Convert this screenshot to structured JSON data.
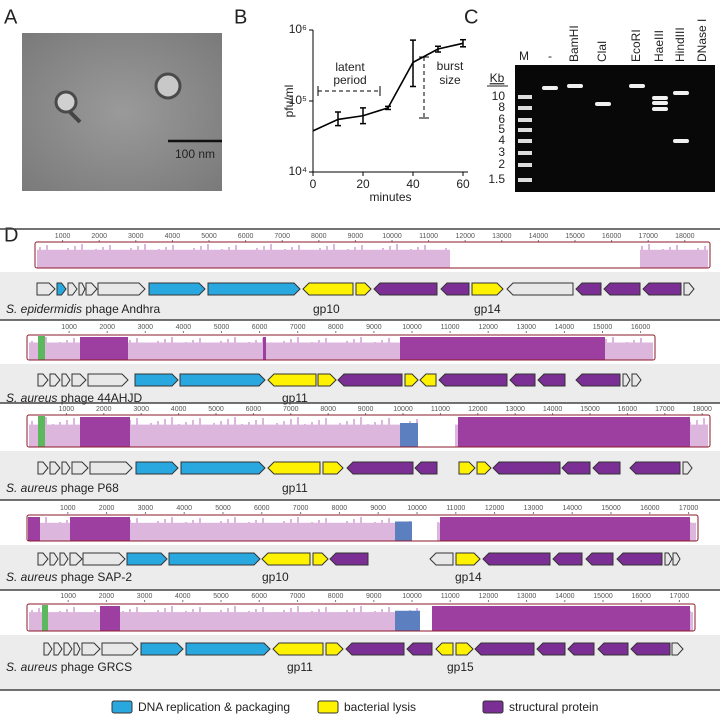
{
  "panel_labels": [
    "A",
    "B",
    "C",
    "D"
  ],
  "panel_a": {
    "scale_bar": "100 nm"
  },
  "chart_data": {
    "type": "line",
    "color": "#000000",
    "x": [
      0,
      10,
      20,
      30,
      40,
      50,
      60
    ],
    "values": [
      38000,
      55000,
      62000,
      80000,
      350000,
      540000,
      650000
    ],
    "lower": [
      null,
      45000,
      48000,
      76000,
      160000,
      490000,
      580000
    ],
    "upper": [
      null,
      70000,
      80000,
      84000,
      720000,
      590000,
      730000
    ],
    "xlim": [
      0,
      62
    ],
    "ylim": [
      10000,
      1000000
    ],
    "log_y": true,
    "xticks": [
      0,
      20,
      40,
      60
    ],
    "yticks": [
      {
        "value": 10000,
        "label": "10⁴"
      },
      {
        "value": 100000,
        "label": "10⁵"
      },
      {
        "value": 1000000,
        "label": "10⁶"
      }
    ],
    "x_label": "minutes",
    "y_label": "pfu/ml",
    "annotations": {
      "latent_period": [
        "latent",
        "period"
      ],
      "burst_size": [
        "burst",
        "size"
      ]
    }
  },
  "panel_c": {
    "lanes": [
      "M",
      "-",
      "BamHI",
      "ClaI",
      "EcoRI",
      "HaeIII",
      "HindIII",
      "DNase I"
    ],
    "unit": "Kb",
    "sizes": [
      10,
      8,
      6,
      5,
      4,
      3,
      2,
      1.5
    ]
  },
  "genomes": [
    {
      "species": "S. epidermidis",
      "phage": "phage Andhra",
      "gene_labels": [
        "gp10",
        "gp14"
      ],
      "ruler": [
        1000,
        2000,
        3000,
        4000,
        5000,
        6000,
        7000,
        8000,
        9000,
        10000,
        11000,
        12000,
        13000,
        14000,
        15000,
        16000,
        17000,
        18000
      ]
    },
    {
      "species": "S. aureus",
      "phage": "phage 44AHJD",
      "gene_labels": [
        "gp11"
      ],
      "ruler": [
        1000,
        2000,
        3000,
        4000,
        5000,
        6000,
        7000,
        8000,
        9000,
        10000,
        11000,
        12000,
        13000,
        14000,
        15000,
        16000
      ]
    },
    {
      "species": "S. aureus",
      "phage": "phage P68",
      "gene_labels": [
        "gp11"
      ],
      "ruler": [
        1000,
        2000,
        3000,
        4000,
        5000,
        6000,
        7000,
        8000,
        9000,
        10000,
        11000,
        12000,
        13000,
        14000,
        15000,
        16000,
        17000,
        18000
      ]
    },
    {
      "species": "S. aureus",
      "phage": "phage SAP-2",
      "gene_labels": [
        "gp10",
        "gp14"
      ],
      "ruler": [
        1000,
        2000,
        3000,
        4000,
        5000,
        6000,
        7000,
        8000,
        9000,
        10000,
        11000,
        12000,
        13000,
        14000,
        15000,
        16000,
        17000
      ]
    },
    {
      "species": "S. aureus",
      "phage": "phage GRCS",
      "gene_labels": [
        "gp11",
        "gp15"
      ],
      "ruler": [
        1000,
        2000,
        3000,
        4000,
        5000,
        6000,
        7000,
        8000,
        9000,
        10000,
        11000,
        12000,
        13000,
        14000,
        15000,
        16000,
        17000
      ]
    }
  ],
  "legend": [
    {
      "label": "DNA replication & packaging",
      "color": "#29a8e0"
    },
    {
      "label": "bacterial lysis",
      "color": "#fff200"
    },
    {
      "label": "structural protein",
      "color": "#7b2f95"
    }
  ]
}
